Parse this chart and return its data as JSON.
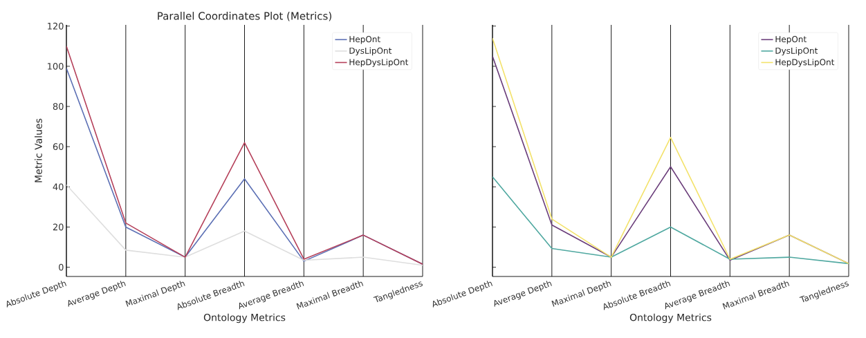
{
  "chart_data": [
    {
      "type": "line",
      "title": "Parallel Coordinates Plot (Metrics)",
      "xlabel": "Ontology Metrics",
      "ylabel": "Metric Values",
      "categories": [
        "Absolute Depth",
        "Average Depth",
        "Maximal Depth",
        "Absolute Breadth",
        "Average Breadth",
        "Maximal Breadth",
        "Tangledness"
      ],
      "series": [
        {
          "name": "HepOnt",
          "color": "#5b6fb4",
          "values": [
            99,
            20,
            5,
            44,
            3,
            16,
            1.5
          ]
        },
        {
          "name": "DysLipOnt",
          "color": "#dedede",
          "values": [
            41,
            8.5,
            5,
            18,
            3.5,
            5,
            1
          ]
        },
        {
          "name": "HepDysLipOnt",
          "color": "#b5405a",
          "values": [
            110,
            22,
            5,
            62,
            4,
            16,
            1.5
          ]
        }
      ],
      "ylim": [
        -4.6,
        120.6
      ],
      "yticks": [
        0,
        20,
        40,
        60,
        80,
        100,
        120
      ],
      "grid": "x",
      "legend": "top right"
    },
    {
      "type": "line",
      "xlabel": "Ontology Metrics",
      "categories": [
        "Absolute Depth",
        "Average Depth",
        "Maximal Depth",
        "Absolute Breadth",
        "Average Breadth",
        "Maximal Breadth",
        "Tangledness"
      ],
      "series": [
        {
          "name": "HepOnt",
          "color": "#6a3d7a",
          "values": [
            105,
            21,
            5,
            50,
            3.5,
            16,
            1.8
          ]
        },
        {
          "name": "DysLipOnt",
          "color": "#4fa8a0",
          "values": [
            45,
            9.3,
            5,
            20,
            4,
            5,
            1.8
          ]
        },
        {
          "name": "HepDysLipOnt",
          "color": "#f3e26a",
          "values": [
            114,
            24,
            5,
            64.6,
            4,
            16,
            1.8
          ]
        }
      ],
      "ylim": [
        -4.6,
        120.6
      ],
      "yticks": [
        0,
        20,
        40,
        60,
        80,
        100,
        120
      ],
      "grid": "x",
      "legend": "top right",
      "tick_labels": "x"
    }
  ]
}
